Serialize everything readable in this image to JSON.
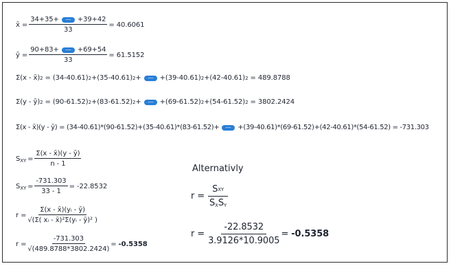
{
  "mean_x": {
    "lhs": "x̄ =",
    "num_a": "34+35+",
    "num_b": "+39+42",
    "den": "33",
    "rhs": "= 40.6061"
  },
  "mean_y": {
    "lhs": "ȳ =",
    "num_a": "90+83+",
    "num_b": "+69+54",
    "den": "33",
    "rhs": "= 61.5152"
  },
  "ssx": {
    "lhs": "Σ(x - x̄)",
    "t1": "= (34-40.61)",
    "t2": "+(35-40.61)",
    "t3": "+",
    "t4": "+(39-40.61)",
    "t5": "+(42-40.61)",
    "rhs": "= 489.8788"
  },
  "ssy": {
    "lhs": "Σ(y - ȳ)",
    "t1": "= (90-61.52)",
    "t2": "+(83-61.52)",
    "t3": "+",
    "t4": "+(69-61.52)",
    "t5": "+(54-61.52)",
    "rhs": "= 3802.2424"
  },
  "sxy_sum": {
    "lhs": "Σ(x - x̄)(y - ȳ) = (34-40.61)*(90-61.52)+(35-40.61)*(83-61.52)+",
    "rhs": "+(39-40.61)*(69-61.52)+(42-40.61)*(54-61.52) = -731.303"
  },
  "sxy_formula": {
    "lhs": "S",
    "sub": "XY",
    "eq": "=",
    "num": "Σ(x - x̄)(y - ȳ)",
    "den": "n - 1"
  },
  "sxy_value": {
    "lhs": "S",
    "sub": "XY",
    "eq": "=",
    "num": "-731.303",
    "den": "33 - 1",
    "rhs": "= -22.8532"
  },
  "r_formula": {
    "lhs": "r =",
    "num": "Σ(x - x̄)(yᵢ - ȳ)",
    "den": "√(Σ( xᵢ - x̄)²Σ(yᵢ - ȳ)² )"
  },
  "r_value": {
    "lhs": "r =",
    "num": "-731.303",
    "den": "√(489.8788*3802.2424)",
    "eq": "=",
    "result": "-0.5358"
  },
  "alternative": {
    "title": "Alternativly",
    "formula": {
      "lhs": "r =",
      "num_s": "S",
      "num_sub": "XY",
      "den_s1": "S",
      "den_sub1": "X",
      "den_s2": "S",
      "den_sub2": "Y"
    },
    "value": {
      "lhs": "r =",
      "num": "-22.8532",
      "den": "3.9126*10.9005",
      "eq": "=",
      "result": "-0.5358"
    }
  },
  "sup2": "2",
  "colors": {
    "ellipsis_pill": "#2a7fd6",
    "text": "#1f2430"
  },
  "icons": {
    "ellipsis": "ellipsis-pill-icon"
  }
}
